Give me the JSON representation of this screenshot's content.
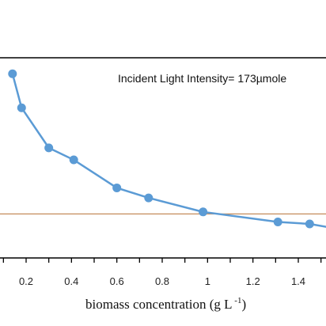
{
  "chart_data": {
    "type": "line",
    "title": "",
    "annotation": "Incident Light  Intensity= 173µmole",
    "xlabel": {
      "main": "biomass concentration (g L",
      "sup": " -1",
      "close": ")"
    },
    "ylabel": "",
    "xlim": [
      0.1,
      1.5
    ],
    "x_ticks": [
      0.2,
      0.4,
      0.6,
      0.8,
      1,
      1.2,
      1.4
    ],
    "x_tick_labels": [
      "0.2",
      "0.4",
      "0.6",
      "0.8",
      "1",
      "1.2",
      "1.4"
    ],
    "ylim": [
      0,
      1
    ],
    "series": [
      {
        "color": "#5b9bd5",
        "x": [
          0.14,
          0.18,
          0.3,
          0.41,
          0.6,
          0.74,
          0.98,
          1.31,
          1.45,
          1.55
        ],
        "y": [
          0.92,
          0.75,
          0.55,
          0.49,
          0.35,
          0.3,
          0.23,
          0.18,
          0.17,
          0.15
        ]
      }
    ],
    "reference_line": {
      "color": "#c58c5a",
      "y": 0.22
    },
    "grid": false
  }
}
